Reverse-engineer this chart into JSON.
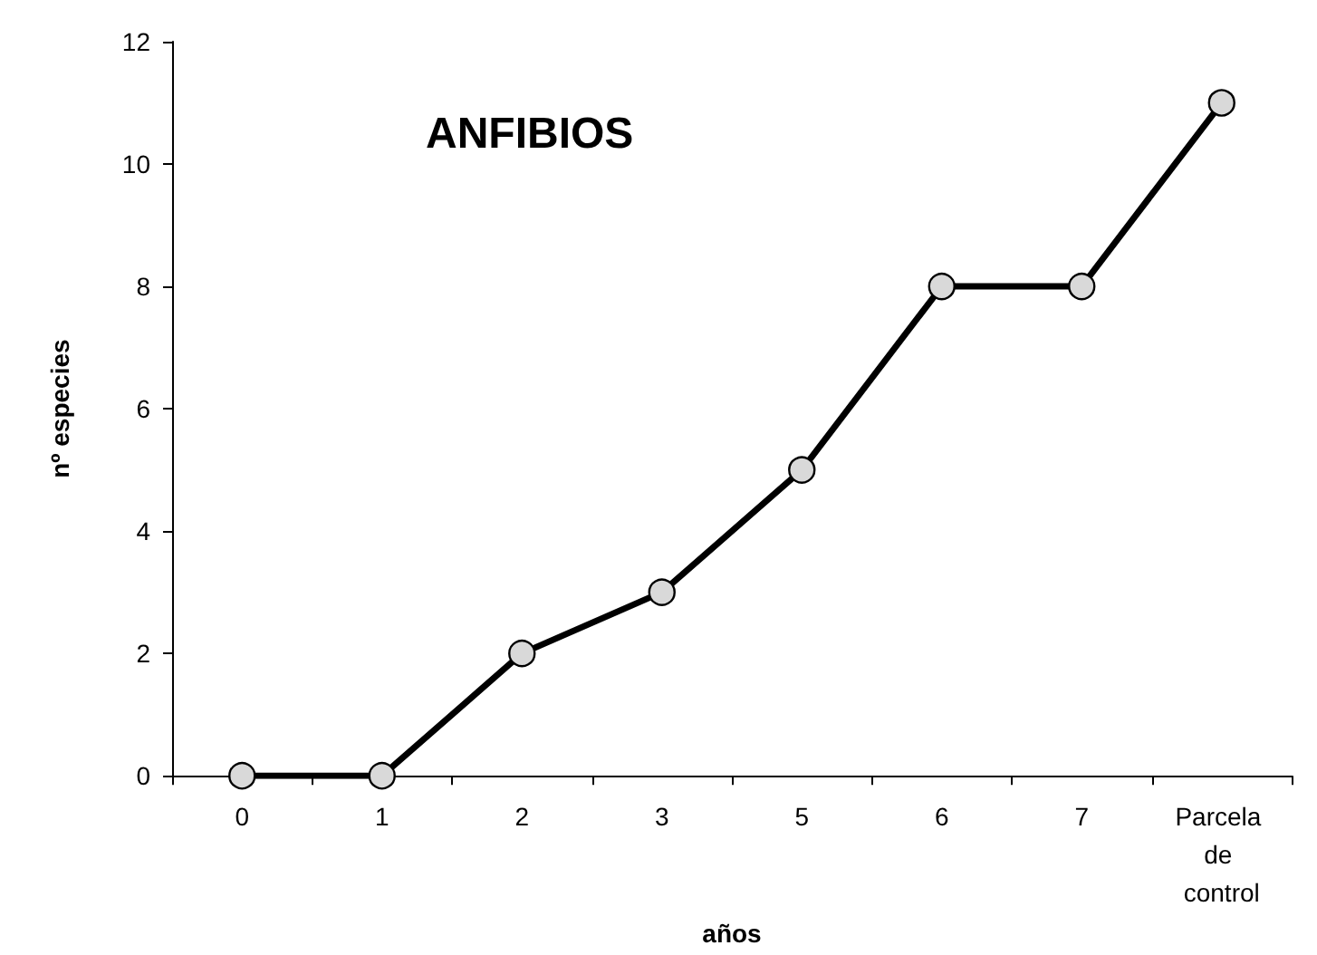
{
  "chart_data": {
    "type": "line",
    "title": "ANFIBIOS",
    "xlabel": "años",
    "ylabel": "nº especies",
    "categories": [
      "0",
      "1",
      "2",
      "3",
      "5",
      "6",
      "7",
      "Parcela de control"
    ],
    "series": [
      {
        "color": "#000000",
        "values": [
          0,
          0,
          2,
          3,
          5,
          8,
          8,
          11
        ]
      }
    ],
    "ylim": [
      0,
      12
    ],
    "yticks": [
      0,
      2,
      4,
      6,
      8,
      10,
      12
    ],
    "grid": false,
    "marker": "circle",
    "line_style": "solid"
  }
}
